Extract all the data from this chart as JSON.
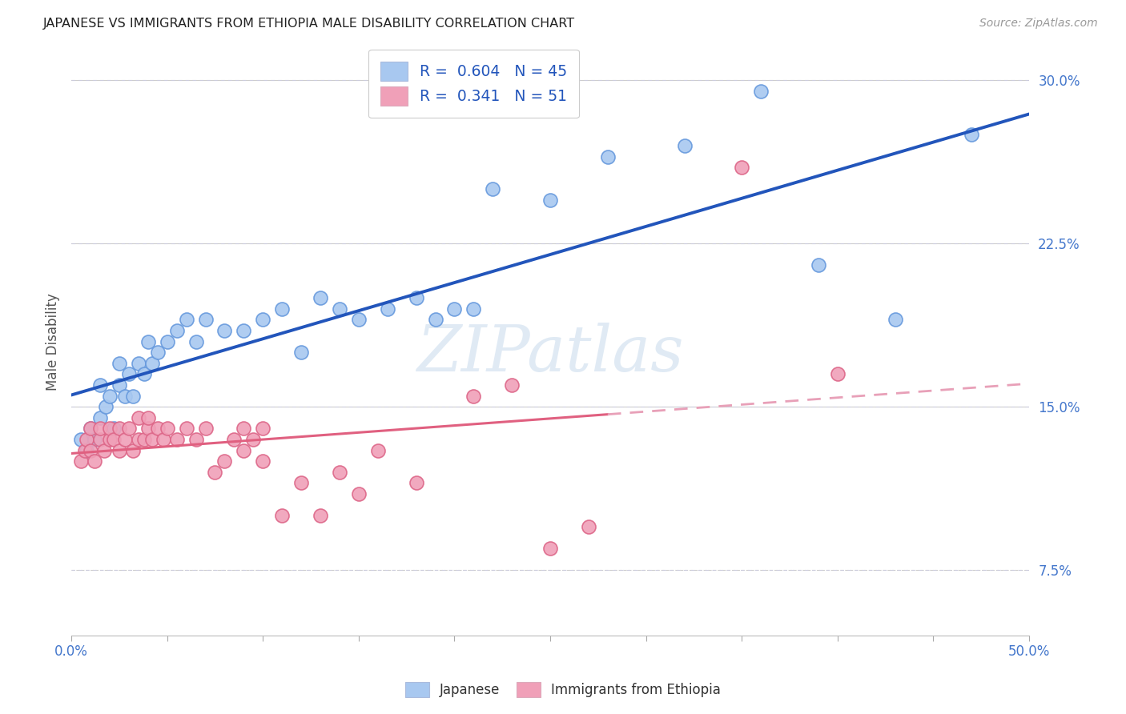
{
  "title": "JAPANESE VS IMMIGRANTS FROM ETHIOPIA MALE DISABILITY CORRELATION CHART",
  "source": "Source: ZipAtlas.com",
  "ylabel": "Male Disability",
  "ytick_labels": [
    "7.5%",
    "15.0%",
    "22.5%",
    "30.0%"
  ],
  "ytick_values": [
    0.075,
    0.15,
    0.225,
    0.3
  ],
  "xlim": [
    0.0,
    0.5
  ],
  "ylim": [
    0.045,
    0.315
  ],
  "legend_blue_R": "0.604",
  "legend_blue_N": "45",
  "legend_pink_R": "0.341",
  "legend_pink_N": "51",
  "blue_color": "#A8C8F0",
  "pink_color": "#F0A0B8",
  "line_blue": "#2255BB",
  "line_pink": "#E06080",
  "line_pink_dash": "#E8A0B8",
  "watermark": "ZIPatlas",
  "japanese_x": [
    0.005,
    0.008,
    0.01,
    0.012,
    0.015,
    0.015,
    0.018,
    0.02,
    0.022,
    0.025,
    0.025,
    0.028,
    0.03,
    0.032,
    0.035,
    0.038,
    0.04,
    0.042,
    0.045,
    0.05,
    0.055,
    0.06,
    0.065,
    0.07,
    0.08,
    0.09,
    0.1,
    0.11,
    0.12,
    0.13,
    0.14,
    0.15,
    0.165,
    0.18,
    0.19,
    0.2,
    0.21,
    0.22,
    0.25,
    0.28,
    0.32,
    0.36,
    0.39,
    0.43,
    0.47
  ],
  "japanese_y": [
    0.135,
    0.13,
    0.14,
    0.135,
    0.145,
    0.16,
    0.15,
    0.155,
    0.14,
    0.16,
    0.17,
    0.155,
    0.165,
    0.155,
    0.17,
    0.165,
    0.18,
    0.17,
    0.175,
    0.18,
    0.185,
    0.19,
    0.18,
    0.19,
    0.185,
    0.185,
    0.19,
    0.195,
    0.175,
    0.2,
    0.195,
    0.19,
    0.195,
    0.2,
    0.19,
    0.195,
    0.195,
    0.25,
    0.245,
    0.265,
    0.27,
    0.295,
    0.215,
    0.19,
    0.275
  ],
  "ethiopia_x": [
    0.005,
    0.007,
    0.008,
    0.01,
    0.01,
    0.012,
    0.015,
    0.015,
    0.017,
    0.02,
    0.02,
    0.022,
    0.025,
    0.025,
    0.028,
    0.03,
    0.032,
    0.035,
    0.035,
    0.038,
    0.04,
    0.04,
    0.042,
    0.045,
    0.048,
    0.05,
    0.055,
    0.06,
    0.065,
    0.07,
    0.075,
    0.08,
    0.085,
    0.09,
    0.09,
    0.095,
    0.1,
    0.1,
    0.11,
    0.12,
    0.13,
    0.14,
    0.15,
    0.16,
    0.18,
    0.21,
    0.23,
    0.25,
    0.27,
    0.35,
    0.4
  ],
  "ethiopia_y": [
    0.125,
    0.13,
    0.135,
    0.13,
    0.14,
    0.125,
    0.135,
    0.14,
    0.13,
    0.135,
    0.14,
    0.135,
    0.14,
    0.13,
    0.135,
    0.14,
    0.13,
    0.135,
    0.145,
    0.135,
    0.14,
    0.145,
    0.135,
    0.14,
    0.135,
    0.14,
    0.135,
    0.14,
    0.135,
    0.14,
    0.12,
    0.125,
    0.135,
    0.13,
    0.14,
    0.135,
    0.14,
    0.125,
    0.1,
    0.115,
    0.1,
    0.12,
    0.11,
    0.13,
    0.115,
    0.155,
    0.16,
    0.085,
    0.095,
    0.26,
    0.165
  ],
  "xtick_positions": [
    0.0,
    0.05,
    0.1,
    0.15,
    0.2,
    0.25,
    0.3,
    0.35,
    0.4,
    0.45,
    0.5
  ]
}
